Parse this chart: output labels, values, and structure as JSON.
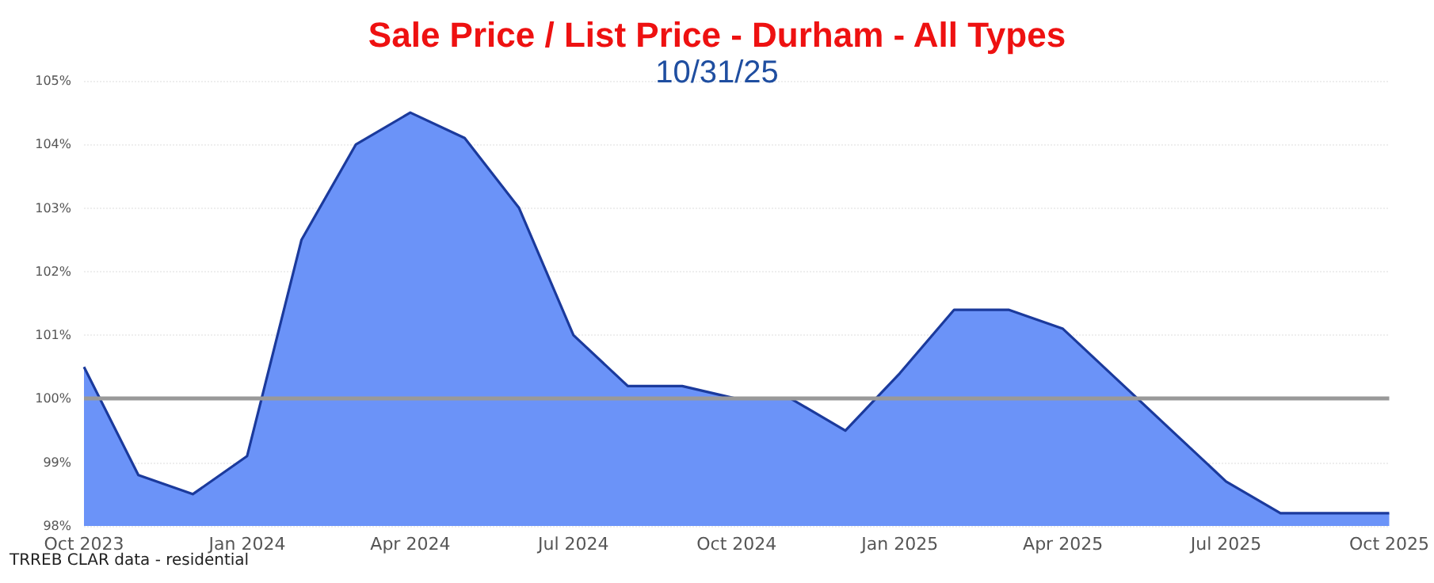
{
  "chart_data": {
    "type": "area",
    "title": "Sale Price / List Price - Durham - All Types",
    "subtitle": "10/31/25",
    "categories": [
      "Oct 2023",
      null,
      null,
      "Jan 2024",
      null,
      null,
      "Apr 2024",
      null,
      null,
      "Jul 2024",
      null,
      null,
      "Oct 2024",
      null,
      null,
      "Jan 2025",
      null,
      null,
      "Apr 2025",
      null,
      null,
      "Jul 2025",
      null,
      null,
      "Oct 2025"
    ],
    "series": [
      {
        "color": "#6b93f8",
        "values": [
          100.5,
          98.8,
          98.5,
          99.1,
          102.5,
          104.0,
          104.5,
          104.1,
          103.0,
          101.0,
          100.2,
          100.2,
          100.0,
          100.0,
          99.5,
          100.4,
          101.4,
          101.4,
          101.1,
          100.3,
          99.5,
          98.7,
          98.2,
          98.2,
          98.2
        ]
      }
    ],
    "ylim": [
      98,
      105
    ],
    "yticks": [
      {
        "value": 98,
        "label": "98%"
      },
      {
        "value": 99,
        "label": "99%"
      },
      {
        "value": 100,
        "label": "100%"
      },
      {
        "value": 101,
        "label": "101%"
      },
      {
        "value": 102,
        "label": "102%"
      },
      {
        "value": 103,
        "label": "103%"
      },
      {
        "value": 104,
        "label": "104%"
      },
      {
        "value": 105,
        "label": "105%"
      }
    ],
    "ref_lines": [
      {
        "axis": "y",
        "value": 100,
        "color": "#999999"
      }
    ],
    "grid": "y",
    "marker": "none",
    "annotations": [
      "TRREB CLAR data - residential"
    ]
  }
}
